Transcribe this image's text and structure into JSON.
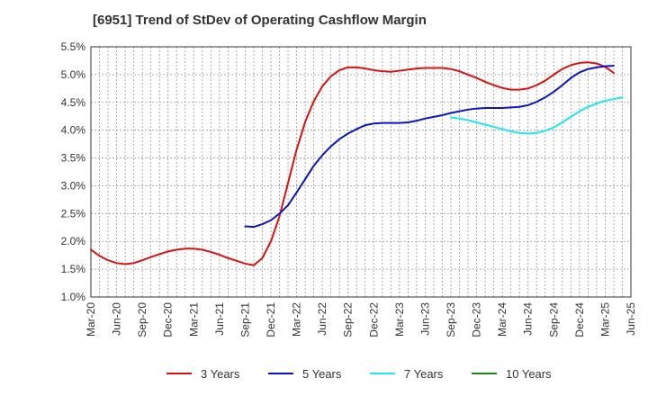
{
  "chart_data": {
    "type": "line",
    "title": "[6951]  Trend of StDev of Operating Cashflow Margin",
    "xlabel": "",
    "ylabel": "",
    "x_tick_labels": [
      "Mar-20",
      "Jun-20",
      "Sep-20",
      "Dec-20",
      "Mar-21",
      "Jun-21",
      "Sep-21",
      "Dec-21",
      "Mar-22",
      "Jun-22",
      "Sep-22",
      "Dec-22",
      "Mar-23",
      "Jun-23",
      "Sep-23",
      "Dec-23",
      "Mar-24",
      "Jun-24",
      "Sep-24",
      "Dec-24",
      "Mar-25",
      "Jun-25"
    ],
    "y_tick_labels": [
      "1.0%",
      "1.5%",
      "2.0%",
      "2.5%",
      "3.0%",
      "3.5%",
      "4.0%",
      "4.5%",
      "5.0%",
      "5.5%"
    ],
    "ylim": [
      1.0,
      5.5
    ],
    "x_period": "month",
    "grid": true,
    "legend_position": "bottom",
    "series": [
      {
        "name": "3 Years",
        "color": "#dd1111",
        "points": [
          [
            "2020-03",
            1.85
          ],
          [
            "2020-04",
            1.74
          ],
          [
            "2020-05",
            1.66
          ],
          [
            "2020-06",
            1.61
          ],
          [
            "2020-07",
            1.59
          ],
          [
            "2020-08",
            1.61
          ],
          [
            "2020-09",
            1.66
          ],
          [
            "2020-10",
            1.72
          ],
          [
            "2020-11",
            1.77
          ],
          [
            "2020-12",
            1.82
          ],
          [
            "2021-01",
            1.85
          ],
          [
            "2021-02",
            1.87
          ],
          [
            "2021-03",
            1.87
          ],
          [
            "2021-04",
            1.85
          ],
          [
            "2021-05",
            1.81
          ],
          [
            "2021-06",
            1.76
          ],
          [
            "2021-07",
            1.7
          ],
          [
            "2021-08",
            1.65
          ],
          [
            "2021-09",
            1.6
          ],
          [
            "2021-10",
            1.57
          ],
          [
            "2021-11",
            1.7
          ],
          [
            "2021-12",
            2.0
          ],
          [
            "2022-01",
            2.45
          ],
          [
            "2022-02",
            3.05
          ],
          [
            "2022-03",
            3.65
          ],
          [
            "2022-04",
            4.15
          ],
          [
            "2022-05",
            4.52
          ],
          [
            "2022-06",
            4.79
          ],
          [
            "2022-07",
            4.97
          ],
          [
            "2022-08",
            5.08
          ],
          [
            "2022-09",
            5.13
          ],
          [
            "2022-10",
            5.13
          ],
          [
            "2022-11",
            5.11
          ],
          [
            "2022-12",
            5.08
          ],
          [
            "2023-01",
            5.06
          ],
          [
            "2023-02",
            5.05
          ],
          [
            "2023-03",
            5.07
          ],
          [
            "2023-04",
            5.09
          ],
          [
            "2023-05",
            5.11
          ],
          [
            "2023-06",
            5.12
          ],
          [
            "2023-07",
            5.12
          ],
          [
            "2023-08",
            5.12
          ],
          [
            "2023-09",
            5.1
          ],
          [
            "2023-10",
            5.06
          ],
          [
            "2023-11",
            5.0
          ],
          [
            "2023-12",
            4.94
          ],
          [
            "2024-01",
            4.87
          ],
          [
            "2024-02",
            4.81
          ],
          [
            "2024-03",
            4.76
          ],
          [
            "2024-04",
            4.73
          ],
          [
            "2024-05",
            4.73
          ],
          [
            "2024-06",
            4.75
          ],
          [
            "2024-07",
            4.81
          ],
          [
            "2024-08",
            4.89
          ],
          [
            "2024-09",
            5.0
          ],
          [
            "2024-10",
            5.1
          ],
          [
            "2024-11",
            5.17
          ],
          [
            "2024-12",
            5.21
          ],
          [
            "2025-01",
            5.22
          ],
          [
            "2025-02",
            5.2
          ],
          [
            "2025-03",
            5.14
          ],
          [
            "2025-04",
            5.03
          ]
        ]
      },
      {
        "name": "5 Years",
        "color": "#0a14c8",
        "points": [
          [
            "2021-09",
            2.27
          ],
          [
            "2021-10",
            2.26
          ],
          [
            "2021-11",
            2.31
          ],
          [
            "2021-12",
            2.38
          ],
          [
            "2022-01",
            2.5
          ],
          [
            "2022-02",
            2.65
          ],
          [
            "2022-03",
            2.88
          ],
          [
            "2022-04",
            3.12
          ],
          [
            "2022-05",
            3.36
          ],
          [
            "2022-06",
            3.55
          ],
          [
            "2022-07",
            3.71
          ],
          [
            "2022-08",
            3.84
          ],
          [
            "2022-09",
            3.94
          ],
          [
            "2022-10",
            4.02
          ],
          [
            "2022-11",
            4.09
          ],
          [
            "2022-12",
            4.12
          ],
          [
            "2023-01",
            4.13
          ],
          [
            "2023-02",
            4.13
          ],
          [
            "2023-03",
            4.13
          ],
          [
            "2023-04",
            4.14
          ],
          [
            "2023-05",
            4.17
          ],
          [
            "2023-06",
            4.21
          ],
          [
            "2023-07",
            4.24
          ],
          [
            "2023-08",
            4.27
          ],
          [
            "2023-09",
            4.31
          ],
          [
            "2023-10",
            4.34
          ],
          [
            "2023-11",
            4.37
          ],
          [
            "2023-12",
            4.39
          ],
          [
            "2024-01",
            4.4
          ],
          [
            "2024-02",
            4.4
          ],
          [
            "2024-03",
            4.4
          ],
          [
            "2024-04",
            4.41
          ],
          [
            "2024-05",
            4.42
          ],
          [
            "2024-06",
            4.45
          ],
          [
            "2024-07",
            4.51
          ],
          [
            "2024-08",
            4.59
          ],
          [
            "2024-09",
            4.69
          ],
          [
            "2024-10",
            4.81
          ],
          [
            "2024-11",
            4.94
          ],
          [
            "2024-12",
            5.04
          ],
          [
            "2025-01",
            5.1
          ],
          [
            "2025-02",
            5.13
          ],
          [
            "2025-03",
            5.15
          ],
          [
            "2025-04",
            5.16
          ]
        ]
      },
      {
        "name": "7 Years",
        "color": "#22e6ee",
        "points": [
          [
            "2023-09",
            4.23
          ],
          [
            "2023-10",
            4.21
          ],
          [
            "2023-11",
            4.18
          ],
          [
            "2023-12",
            4.14
          ],
          [
            "2024-01",
            4.1
          ],
          [
            "2024-02",
            4.06
          ],
          [
            "2024-03",
            4.02
          ],
          [
            "2024-04",
            3.98
          ],
          [
            "2024-05",
            3.95
          ],
          [
            "2024-06",
            3.94
          ],
          [
            "2024-07",
            3.95
          ],
          [
            "2024-08",
            3.99
          ],
          [
            "2024-09",
            4.05
          ],
          [
            "2024-10",
            4.14
          ],
          [
            "2024-11",
            4.24
          ],
          [
            "2024-12",
            4.34
          ],
          [
            "2025-01",
            4.42
          ],
          [
            "2025-02",
            4.48
          ],
          [
            "2025-03",
            4.53
          ],
          [
            "2025-04",
            4.56
          ],
          [
            "2025-05",
            4.59
          ]
        ]
      },
      {
        "name": "10 Years",
        "color": "#1a8a1a",
        "points": []
      }
    ]
  }
}
